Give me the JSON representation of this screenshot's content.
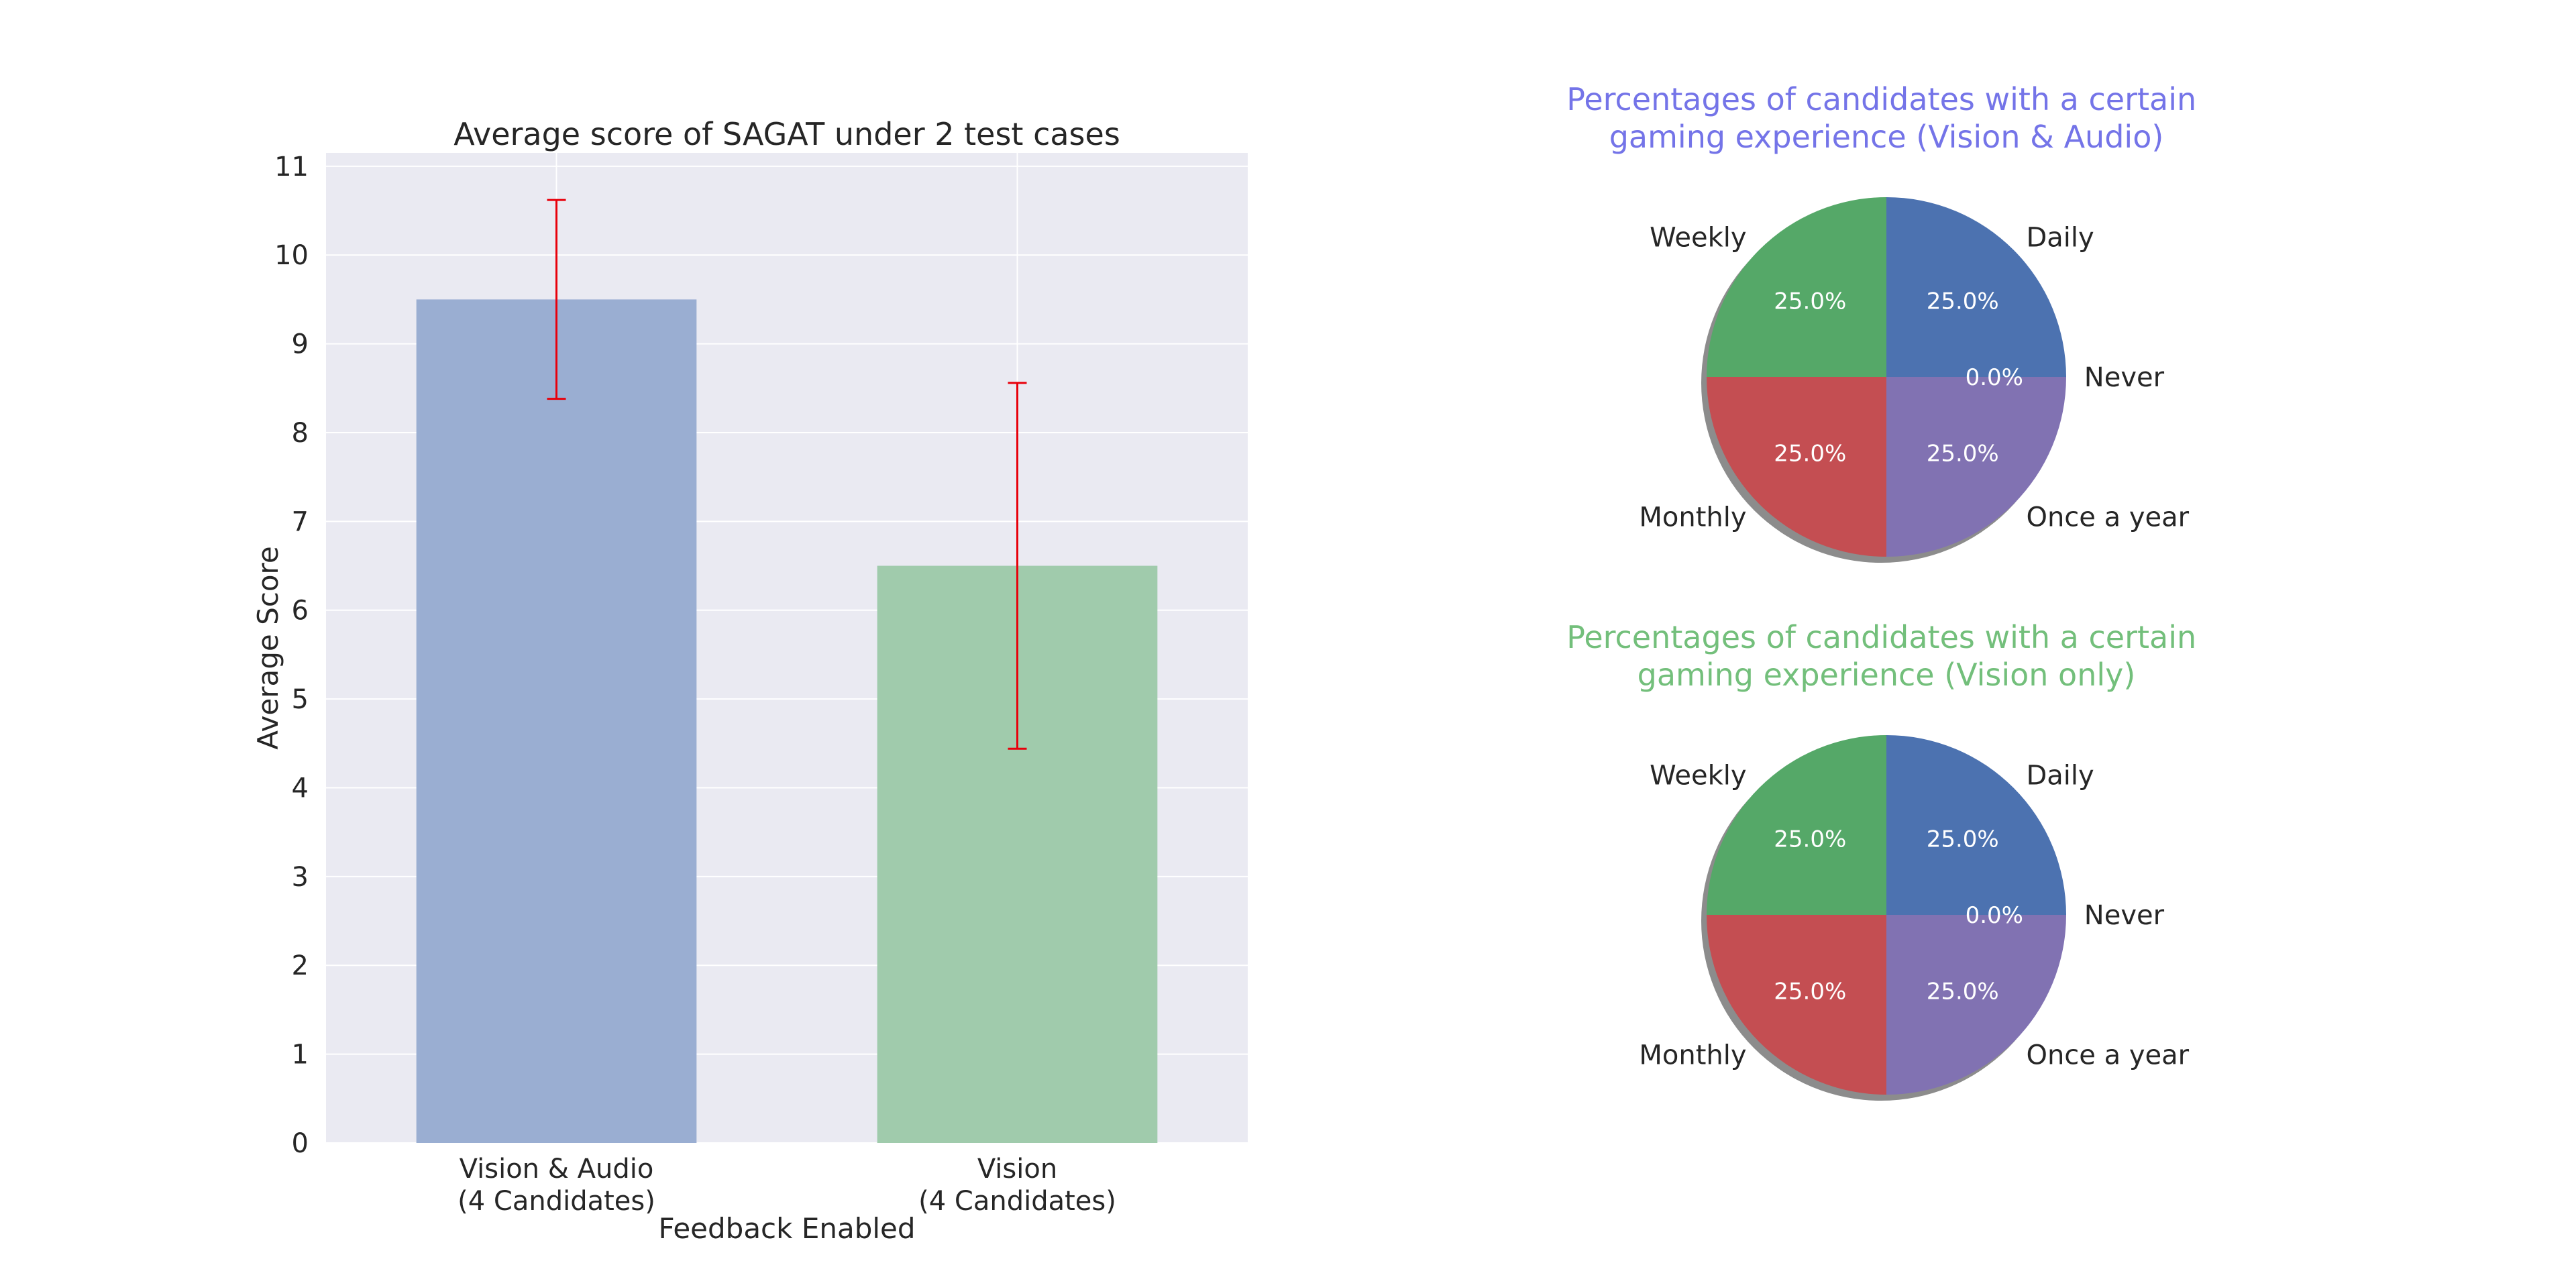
{
  "colors": {
    "axes_background": "#eaeaf2",
    "grid": "#ffffff",
    "bar_vision_audio": "#9aaed2",
    "bar_vision": "#a0cbac",
    "error_bar": "#e8000b",
    "pie_daily": "#4c72b0",
    "pie_weekly": "#55a868",
    "pie_monthly": "#c44e52",
    "pie_once_a_year": "#8172b2",
    "pie_shadow": "#8c8c8c",
    "pie_title_vision_audio": "#7474e8",
    "pie_title_vision": "#73bf7b"
  },
  "chart_data": [
    {
      "type": "bar",
      "title": "Average score of SAGAT under 2 test cases",
      "xlabel": "Feedback Enabled",
      "ylabel": "Average Score",
      "ylim": [
        0,
        11.15
      ],
      "yticks": [
        0,
        1,
        2,
        3,
        4,
        5,
        6,
        7,
        8,
        9,
        10,
        11
      ],
      "grid": true,
      "categories": [
        [
          "Vision & Audio",
          "(4 Candidates)"
        ],
        [
          "Vision",
          "(4 Candidates)"
        ]
      ],
      "values": [
        9.5,
        6.5
      ],
      "error": [
        1.12,
        2.06
      ]
    },
    {
      "type": "pie",
      "title": [
        "Percentages of candidates with a certain",
        "gaming experience (Vision & Audio)"
      ],
      "slices": [
        {
          "label": "Daily",
          "value": 25.0,
          "pct": "25.0%"
        },
        {
          "label": "Never",
          "value": 0.0,
          "pct": "0.0%"
        },
        {
          "label": "Once a year",
          "value": 25.0,
          "pct": "25.0%"
        },
        {
          "label": "Monthly",
          "value": 25.0,
          "pct": "25.0%"
        },
        {
          "label": "Weekly",
          "value": 25.0,
          "pct": "25.0%"
        }
      ]
    },
    {
      "type": "pie",
      "title": [
        "Percentages of candidates with a certain",
        "gaming experience (Vision only)"
      ],
      "slices": [
        {
          "label": "Daily",
          "value": 25.0,
          "pct": "25.0%"
        },
        {
          "label": "Never",
          "value": 0.0,
          "pct": "0.0%"
        },
        {
          "label": "Once a year",
          "value": 25.0,
          "pct": "25.0%"
        },
        {
          "label": "Monthly",
          "value": 25.0,
          "pct": "25.0%"
        },
        {
          "label": "Weekly",
          "value": 25.0,
          "pct": "25.0%"
        }
      ]
    }
  ]
}
